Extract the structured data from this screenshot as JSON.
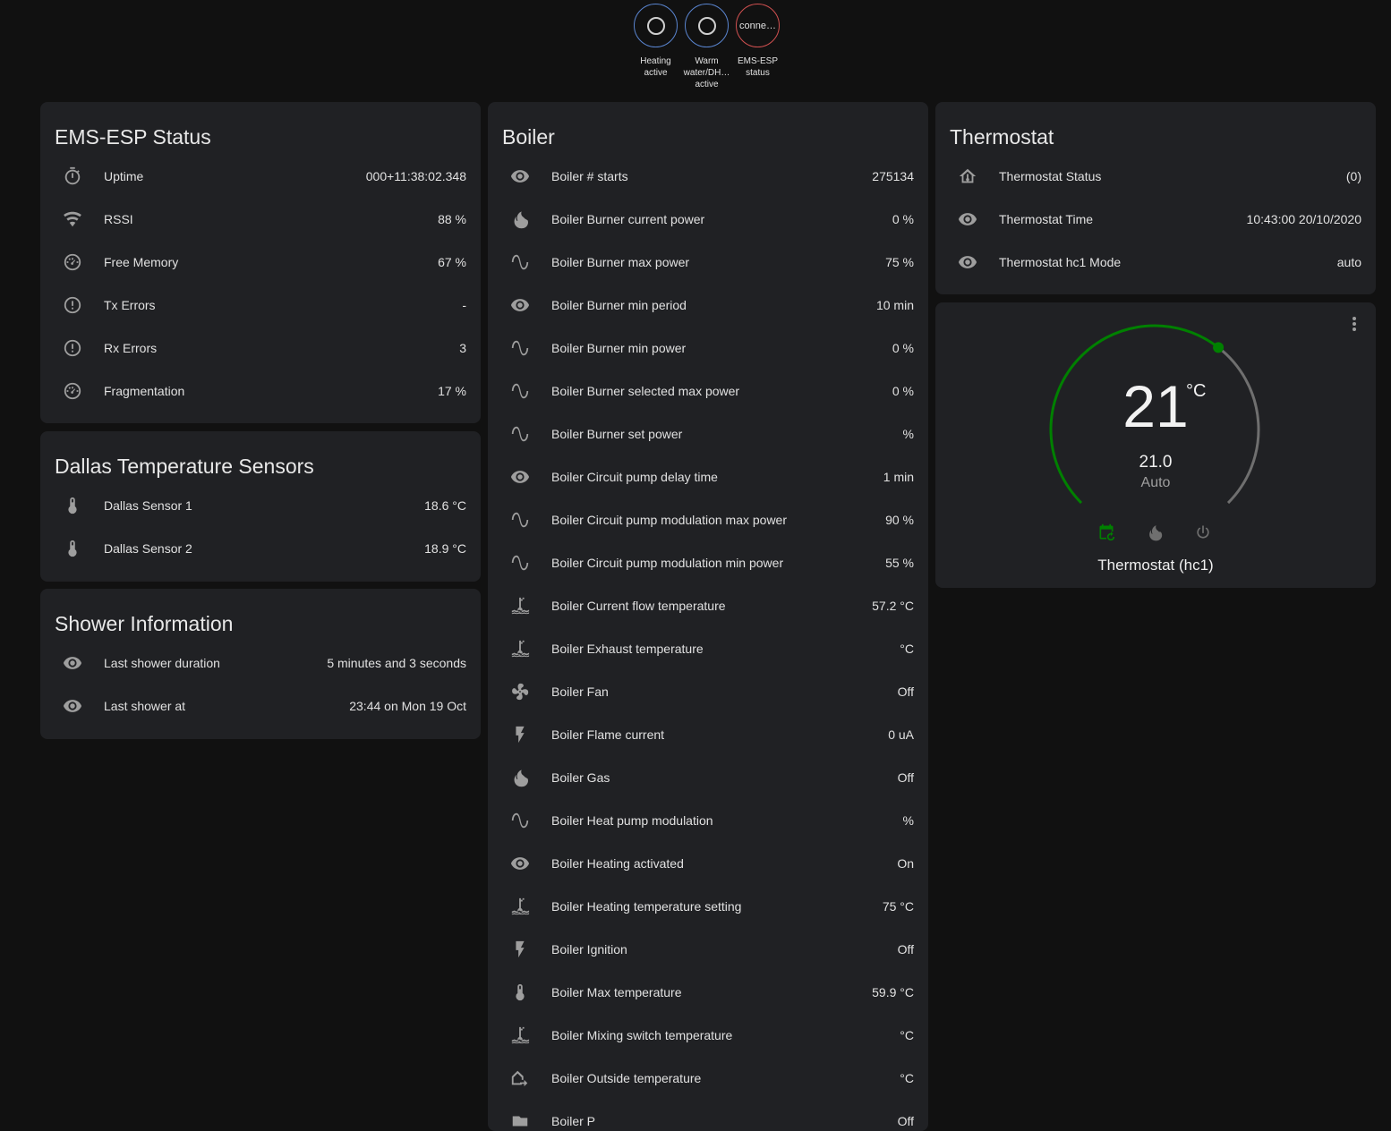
{
  "badges": [
    {
      "label": "Heating active",
      "state": "off",
      "icon": "circle-outline-icon"
    },
    {
      "label": "Warm water/DH… active",
      "state": "off",
      "icon": "circle-outline-icon"
    },
    {
      "label": "EMS-ESP status",
      "state": "conne…",
      "icon": ""
    }
  ],
  "cards": {
    "status": {
      "title": "EMS-ESP Status",
      "rows": [
        {
          "icon": "timer",
          "label": "Uptime",
          "value": "000+11:38:02.348"
        },
        {
          "icon": "wifi",
          "label": "RSSI",
          "value": "88 %"
        },
        {
          "icon": "gauge",
          "label": "Free Memory",
          "value": "67 %"
        },
        {
          "icon": "alert",
          "label": "Tx Errors",
          "value": "-"
        },
        {
          "icon": "alert",
          "label": "Rx Errors",
          "value": "3"
        },
        {
          "icon": "gauge",
          "label": "Fragmentation",
          "value": "17 %"
        }
      ]
    },
    "dallas": {
      "title": "Dallas Temperature Sensors",
      "rows": [
        {
          "icon": "thermometer",
          "label": "Dallas Sensor 1",
          "value": "18.6 °C"
        },
        {
          "icon": "thermometer",
          "label": "Dallas Sensor 2",
          "value": "18.9 °C"
        }
      ]
    },
    "shower": {
      "title": "Shower Information",
      "rows": [
        {
          "icon": "eye",
          "label": "Last shower duration",
          "value": "5 minutes and 3 seconds"
        },
        {
          "icon": "eye",
          "label": "Last shower at",
          "value": "23:44 on Mon 19 Oct"
        }
      ]
    },
    "boiler": {
      "title": "Boiler",
      "rows": [
        {
          "icon": "eye",
          "label": "Boiler # starts",
          "value": "275134"
        },
        {
          "icon": "fire",
          "label": "Boiler Burner current power",
          "value": "0 %"
        },
        {
          "icon": "sine",
          "label": "Boiler Burner max power",
          "value": "75 %"
        },
        {
          "icon": "eye",
          "label": "Boiler Burner min period",
          "value": "10 min"
        },
        {
          "icon": "sine",
          "label": "Boiler Burner min power",
          "value": "0 %"
        },
        {
          "icon": "sine",
          "label": "Boiler Burner selected max power",
          "value": "0 %"
        },
        {
          "icon": "sine",
          "label": "Boiler Burner set power",
          "value": "%"
        },
        {
          "icon": "eye",
          "label": "Boiler Circuit pump delay time",
          "value": "1 min"
        },
        {
          "icon": "sine",
          "label": "Boiler Circuit pump modulation max power",
          "value": "90 %"
        },
        {
          "icon": "sine",
          "label": "Boiler Circuit pump modulation min power",
          "value": "55 %"
        },
        {
          "icon": "water-thermometer",
          "label": "Boiler Current flow temperature",
          "value": "57.2 °C"
        },
        {
          "icon": "water-thermometer",
          "label": "Boiler Exhaust temperature",
          "value": "°C"
        },
        {
          "icon": "fan",
          "label": "Boiler Fan",
          "value": "Off"
        },
        {
          "icon": "flash",
          "label": "Boiler Flame current",
          "value": "0 uA"
        },
        {
          "icon": "fire",
          "label": "Boiler Gas",
          "value": "Off"
        },
        {
          "icon": "sine",
          "label": "Boiler Heat pump modulation",
          "value": "%"
        },
        {
          "icon": "eye",
          "label": "Boiler Heating activated",
          "value": "On"
        },
        {
          "icon": "water-thermometer",
          "label": "Boiler Heating temperature setting",
          "value": "75 °C"
        },
        {
          "icon": "flash",
          "label": "Boiler Ignition",
          "value": "Off"
        },
        {
          "icon": "thermometer",
          "label": "Boiler Max temperature",
          "value": "59.9 °C"
        },
        {
          "icon": "water-thermometer",
          "label": "Boiler Mixing switch temperature",
          "value": "°C"
        },
        {
          "icon": "home-outside",
          "label": "Boiler Outside temperature",
          "value": "°C"
        },
        {
          "icon": "pump",
          "label": "Boiler P",
          "value": "Off"
        }
      ]
    },
    "thermostat": {
      "title": "Thermostat",
      "rows": [
        {
          "icon": "home-thermometer",
          "label": "Thermostat Status",
          "value": "(0)"
        },
        {
          "icon": "eye",
          "label": "Thermostat Time",
          "value": "10:43:00 20/10/2020"
        },
        {
          "icon": "eye",
          "label": "Thermostat hc1 Mode",
          "value": "auto"
        }
      ]
    }
  },
  "climate": {
    "current": "21",
    "unit": "°C",
    "target": "21.0",
    "mode": "Auto",
    "name": "Thermostat (hc1)",
    "setpoint_fraction": 0.64,
    "active_color": "#008000",
    "track_color": "#6f6f6f",
    "modes": [
      "auto",
      "heat",
      "off"
    ]
  }
}
